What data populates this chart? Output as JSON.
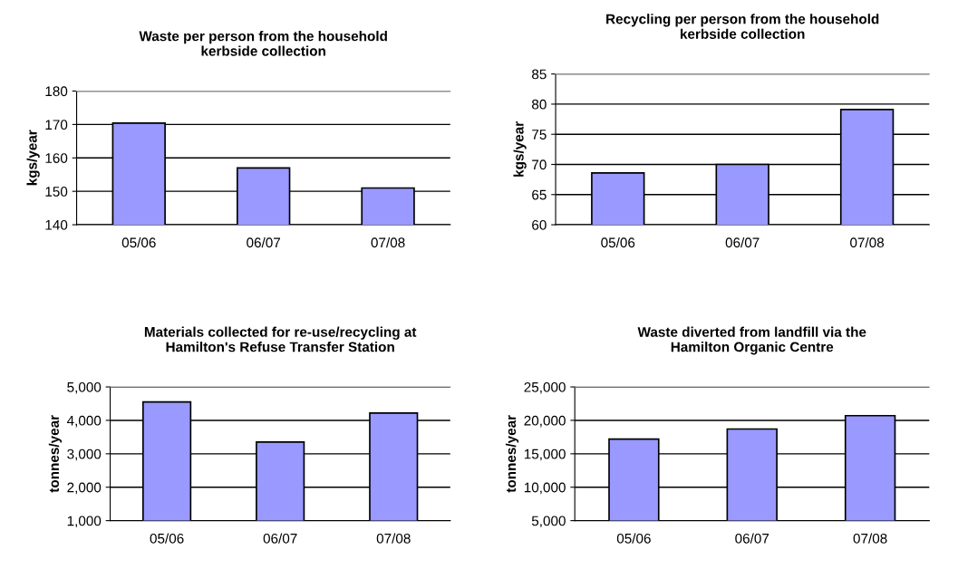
{
  "chart_data": [
    {
      "type": "bar",
      "title": "Waste per person from the household\nkerbside collection",
      "ylabel": "kgs/year",
      "categories": [
        "05/06",
        "06/07",
        "07/08"
      ],
      "values": [
        170.4,
        157,
        151
      ],
      "color": "#9999ff",
      "ylim": [
        140,
        180
      ],
      "yticks": [
        140,
        150,
        160,
        170,
        180
      ],
      "grid": "y"
    },
    {
      "type": "bar",
      "title": "Recycling per person from the household\nkerbside collection",
      "ylabel": "kgs/year",
      "categories": [
        "05/06",
        "06/07",
        "07/08"
      ],
      "values": [
        68.6,
        70,
        79.1
      ],
      "color": "#9999ff",
      "ylim": [
        60,
        85
      ],
      "yticks": [
        60,
        65,
        70,
        75,
        80,
        85
      ],
      "grid": "y"
    },
    {
      "type": "bar",
      "title": "Materials collected for re-use/recycling at\nHamilton's Refuse Transfer Station",
      "ylabel": "tonnes/year",
      "categories": [
        "05/06",
        "06/07",
        "07/08"
      ],
      "values": [
        4550,
        3350,
        4220
      ],
      "color": "#9999ff",
      "ylim": [
        1000,
        5000
      ],
      "yticks": [
        {
          "value": 1000,
          "label": "1,000"
        },
        {
          "value": 2000,
          "label": "2,000"
        },
        {
          "value": 3000,
          "label": "3,000"
        },
        {
          "value": 4000,
          "label": "4,000"
        },
        {
          "value": 5000,
          "label": "5,000"
        }
      ],
      "grid": "y"
    },
    {
      "type": "bar",
      "title": "Waste diverted from landfill via the\nHamilton Organic Centre",
      "ylabel": "tonnes/year",
      "categories": [
        "05/06",
        "06/07",
        "07/08"
      ],
      "values": [
        17200,
        18700,
        20700
      ],
      "color": "#9999ff",
      "ylim": [
        5000,
        25000
      ],
      "yticks": [
        {
          "value": 5000,
          "label": "5,000"
        },
        {
          "value": 10000,
          "label": "10,000"
        },
        {
          "value": 15000,
          "label": "15,000"
        },
        {
          "value": 20000,
          "label": "20,000"
        },
        {
          "value": 25000,
          "label": "25,000"
        }
      ],
      "grid": "y"
    }
  ]
}
